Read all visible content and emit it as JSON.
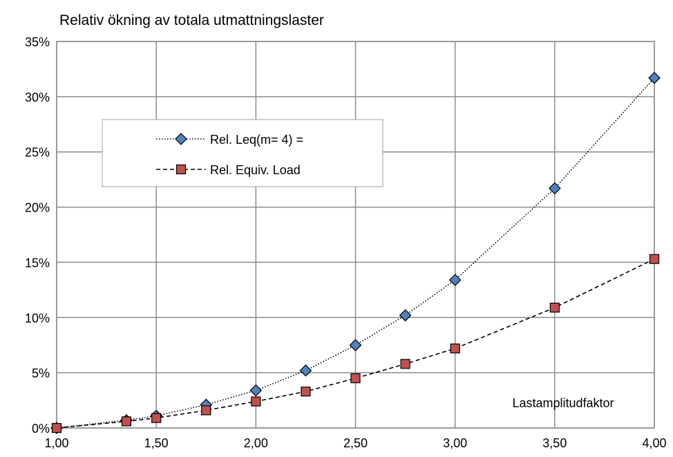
{
  "chart_data": {
    "type": "line",
    "title": "Relativ ökning av totala utmattningslaster",
    "xlabel": "Lastamplitudfaktor",
    "ylabel": "",
    "xlim": [
      1.0,
      4.0
    ],
    "ylim": [
      0,
      0.35
    ],
    "x_ticks": [
      1.0,
      1.5,
      2.0,
      2.5,
      3.0,
      3.5,
      4.0
    ],
    "x_tick_labels": [
      "1,00",
      "1,50",
      "2,00",
      "2,50",
      "3,00",
      "3,50",
      "4,00"
    ],
    "y_ticks": [
      0,
      0.05,
      0.1,
      0.15,
      0.2,
      0.25,
      0.3,
      0.35
    ],
    "y_tick_labels": [
      "0%",
      "5%",
      "10%",
      "15%",
      "20%",
      "25%",
      "30%",
      "35%"
    ],
    "grid": true,
    "legend_position": "upper-left",
    "series": [
      {
        "name": "Rel. Leq(m= 4) =",
        "marker": "diamond",
        "line_style": "dotted",
        "color": "#4f81bd",
        "x": [
          1.0,
          1.35,
          1.5,
          1.75,
          2.0,
          2.25,
          2.5,
          2.75,
          3.0,
          3.5,
          4.0
        ],
        "values": [
          0.0,
          0.007,
          0.011,
          0.021,
          0.034,
          0.052,
          0.075,
          0.102,
          0.134,
          0.217,
          0.317
        ]
      },
      {
        "name": "Rel. Equiv. Load",
        "marker": "square",
        "line_style": "dashed",
        "color": "#c0504d",
        "x": [
          1.0,
          1.35,
          1.5,
          1.75,
          2.0,
          2.25,
          2.5,
          2.75,
          3.0,
          3.5,
          4.0
        ],
        "values": [
          0.0,
          0.006,
          0.009,
          0.016,
          0.024,
          0.033,
          0.045,
          0.058,
          0.072,
          0.109,
          0.153
        ]
      }
    ]
  }
}
